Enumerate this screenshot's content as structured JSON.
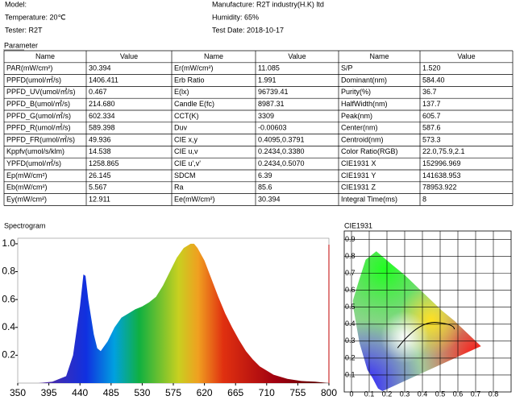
{
  "header": {
    "model": "Model:",
    "manufacture": "Manufacture: R2T industry(H.K) ltd",
    "temperature": "Temperature: 20℃",
    "humidity": "Humidity: 65%",
    "tester": "Tester: R2T",
    "test_date": "Test Date: 2018-10-17"
  },
  "table": {
    "title": "Parameter",
    "header": [
      "Name",
      "Value",
      "Name",
      "Value",
      "Name",
      "Value"
    ],
    "rows": [
      [
        "PAR(mW/cm²)",
        "30.394",
        "Er(mW/cm²)",
        "11.085",
        "S/P",
        "1.520"
      ],
      [
        "PPFD(umol/㎡/s)",
        "1406.411",
        "Erb Ratio",
        "1.991",
        "Dominant(nm)",
        "584.40"
      ],
      [
        "PPFD_UV(umol/㎡/s)",
        "0.467",
        "E(lx)",
        "96739.41",
        "Purity(%)",
        "36.7"
      ],
      [
        "PPFD_B(umol/㎡/s)",
        "214.680",
        "Candle E(fc)",
        "8987.31",
        "HalfWidth(nm)",
        "137.7"
      ],
      [
        "PPFD_G(umol/㎡/s)",
        "602.334",
        "CCT(K)",
        "3309",
        "Peak(nm)",
        "605.7"
      ],
      [
        "PPFD_R(umol/㎡/s)",
        "589.398",
        "Duv",
        "-0.00603",
        "Center(nm)",
        "587.6"
      ],
      [
        "PPFD_FR(umol/㎡/s)",
        "49.936",
        "CIE x,y",
        "0.4095,0.3791",
        "Centroid(nm)",
        "573.3"
      ],
      [
        "Kppfv(umol/s/klm)",
        "14.538",
        "CIE u,v",
        "0.2434,0.3380",
        "Color Ratio(RGB)",
        "22.0,75.9,2.1"
      ],
      [
        "YPFD(umol/㎡/s)",
        "1258.865",
        "CIE u',v'",
        "0.2434,0.5070",
        "CIE1931 X",
        "152996.969"
      ],
      [
        "Ep(mW/cm²)",
        "26.145",
        "SDCM",
        "6.39",
        "CIE1931 Y",
        "141638.953"
      ],
      [
        "Eb(mW/cm²)",
        "5.567",
        "Ra",
        "85.6",
        "CIE1931 Z",
        "78953.922"
      ],
      [
        "Ey(mW/cm²)",
        "12.911",
        "Ee(mW/cm²)",
        "30.394",
        "Integral Time(ms)",
        "8"
      ]
    ]
  },
  "chart_data": [
    {
      "type": "area",
      "title": "Spectrogram",
      "x": [
        380,
        400,
        420,
        430,
        440,
        445,
        448,
        452,
        460,
        465,
        470,
        480,
        490,
        500,
        510,
        520,
        530,
        540,
        550,
        560,
        570,
        580,
        590,
        600,
        605,
        610,
        620,
        630,
        640,
        650,
        660,
        670,
        680,
        690,
        700,
        720,
        740,
        760,
        780,
        800
      ],
      "values": [
        0,
        0.01,
        0.05,
        0.2,
        0.55,
        0.78,
        0.77,
        0.6,
        0.35,
        0.25,
        0.23,
        0.3,
        0.4,
        0.47,
        0.5,
        0.53,
        0.55,
        0.58,
        0.62,
        0.7,
        0.8,
        0.9,
        0.97,
        1.0,
        1.0,
        0.97,
        0.88,
        0.75,
        0.62,
        0.5,
        0.4,
        0.31,
        0.23,
        0.17,
        0.12,
        0.06,
        0.03,
        0.015,
        0.01,
        0
      ],
      "xlim": [
        350,
        800
      ],
      "xticks": [
        350,
        395,
        440,
        485,
        530,
        575,
        620,
        665,
        710,
        755,
        800
      ],
      "ylim": [
        0,
        1.04
      ],
      "yticks": [
        0.2,
        0.4,
        0.6,
        0.8,
        {
          "value": 1,
          "label": "1.0"
        }
      ]
    },
    {
      "type": "cie",
      "title": "CIE1931",
      "xlim": [
        0,
        0.9
      ],
      "xticks": [
        0,
        0.1,
        0.2,
        0.3,
        0.4,
        0.5,
        0.6,
        0.7,
        0.8
      ],
      "ylim": [
        0,
        0.95
      ],
      "yticks": [
        0.1,
        0.2,
        0.3,
        0.4,
        0.5,
        0.6,
        0.7,
        0.8,
        0.9
      ],
      "grid": true
    }
  ]
}
